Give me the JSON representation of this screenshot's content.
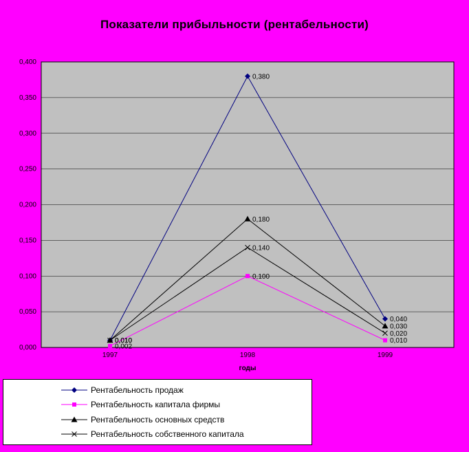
{
  "page": {
    "background": "#ff00ff"
  },
  "chart_data": {
    "type": "line",
    "title": "Показатели прибыльности (рентабельности)",
    "xlabel": "годы",
    "ylabel": "",
    "categories": [
      "1997",
      "1998",
      "1999"
    ],
    "ylim": [
      0,
      0.4
    ],
    "ytick_step": 0.05,
    "ytick_labels": [
      "0,000",
      "0,050",
      "0,100",
      "0,150",
      "0,200",
      "0,250",
      "0,300",
      "0,350",
      "0,400"
    ],
    "plot_background": "#c0c0c0",
    "grid": true,
    "legend_position": "bottom-left",
    "series": [
      {
        "name": "Рентабельность продаж",
        "color": "#000080",
        "marker": "diamond",
        "values": [
          0.01,
          0.38,
          0.04
        ],
        "labels": [
          "0,010",
          "0,380",
          "0,040"
        ]
      },
      {
        "name": "Рентабельность капитала фирмы",
        "color": "#ff00ff",
        "marker": "square",
        "values": [
          0.002,
          0.1,
          0.01
        ],
        "labels": [
          "0,002",
          "0,100",
          "0,010"
        ]
      },
      {
        "name": "Рентабельность основных средств",
        "color": "#000000",
        "marker": "triangle",
        "values": [
          0.01,
          0.18,
          0.03
        ],
        "labels": [
          "0,010",
          "0,180",
          "0,030"
        ]
      },
      {
        "name": "Рентабельность собственного капитала",
        "color": "#000000",
        "marker": "x",
        "values": [
          0.01,
          0.14,
          0.02
        ],
        "labels": [
          "0,010",
          "0,140",
          "0,020"
        ]
      }
    ]
  }
}
